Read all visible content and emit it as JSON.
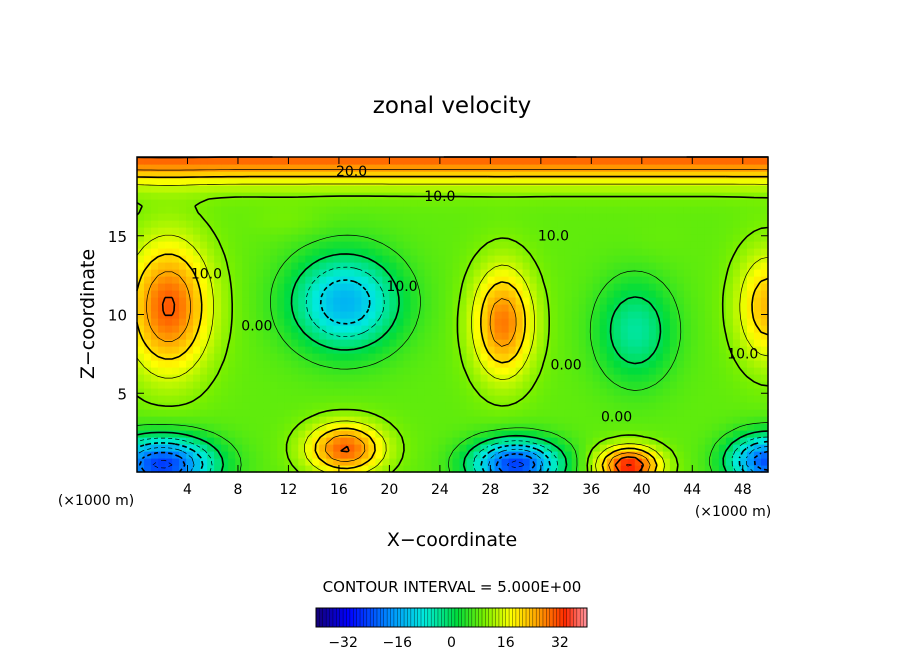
{
  "chart_data": {
    "type": "heatmap",
    "title": "zonal velocity",
    "xlabel": "X−coordinate",
    "ylabel": "Z−coordinate",
    "x_units": "(×1000 m)",
    "y_units": "(×1000 m)",
    "xlim": [
      0,
      50
    ],
    "ylim": [
      0,
      20
    ],
    "x_ticks": [
      "4",
      "8",
      "12",
      "16",
      "20",
      "24",
      "28",
      "32",
      "36",
      "40",
      "44",
      "48"
    ],
    "x_tick_values": [
      4,
      8,
      12,
      16,
      20,
      24,
      28,
      32,
      36,
      40,
      44,
      48
    ],
    "y_ticks": [
      "5",
      "10",
      "15"
    ],
    "y_tick_values": [
      5,
      10,
      15
    ],
    "contour_interval_text": "CONTOUR INTERVAL = 5.000E+00",
    "contour_interval": 5,
    "contour_labels": [
      {
        "text": "20.0",
        "x": 17,
        "y": 18.8
      },
      {
        "text": "10.0",
        "x": 24,
        "y": 17.2
      },
      {
        "text": "10.0",
        "x": 33,
        "y": 14.7
      },
      {
        "text": "10.0",
        "x": 5.5,
        "y": 12.3
      },
      {
        "text": "10.0",
        "x": 21,
        "y": 11.5
      },
      {
        "text": "0.00",
        "x": 9.5,
        "y": 9.0
      },
      {
        "text": "0.00",
        "x": 34,
        "y": 6.5
      },
      {
        "text": "10.0",
        "x": 48,
        "y": 7.2
      },
      {
        "text": "0.00",
        "x": 38,
        "y": 3.2
      }
    ],
    "features": [
      {
        "x": 2.5,
        "y": 10.5,
        "value": 25,
        "sx": 3.3,
        "sy": 4.2
      },
      {
        "x": 16.5,
        "y": 10.8,
        "value": -20,
        "sx": 4.2,
        "sy": 3.0
      },
      {
        "x": 29,
        "y": 9.5,
        "value": 23,
        "sx": 2.4,
        "sy": 3.5
      },
      {
        "x": 39.5,
        "y": 9.0,
        "value": -10,
        "sx": 3.0,
        "sy": 3.2
      },
      {
        "x": 50,
        "y": 10.5,
        "value": 18,
        "sx": 2.5,
        "sy": 3.5
      },
      {
        "x": 2.0,
        "y": 0.5,
        "value": -32,
        "sx": 4.0,
        "sy": 1.7
      },
      {
        "x": 16.5,
        "y": 1.5,
        "value": 25,
        "sx": 3.0,
        "sy": 1.6
      },
      {
        "x": 30,
        "y": 0.5,
        "value": -32,
        "sx": 3.4,
        "sy": 1.5
      },
      {
        "x": 39,
        "y": 0.4,
        "value": 30,
        "sx": 2.4,
        "sy": 1.2
      },
      {
        "x": 50,
        "y": 0.7,
        "value": -30,
        "sx": 3.0,
        "sy": 1.6
      },
      {
        "x": 12,
        "y": 16.0,
        "value": 4,
        "sx": 3.0,
        "sy": 1.0
      },
      {
        "x": 41,
        "y": 14.5,
        "value": 3,
        "sx": 2.5,
        "sy": 1.5
      }
    ],
    "top_band": {
      "value": 30,
      "y": 20,
      "sy": 1.6
    },
    "background_value": 8,
    "colorbar": {
      "ticks": [
        "−32",
        "−16",
        "0",
        "16",
        "32"
      ],
      "tick_values": [
        -32,
        -16,
        0,
        16,
        32
      ],
      "min": -40,
      "max": 40
    }
  }
}
